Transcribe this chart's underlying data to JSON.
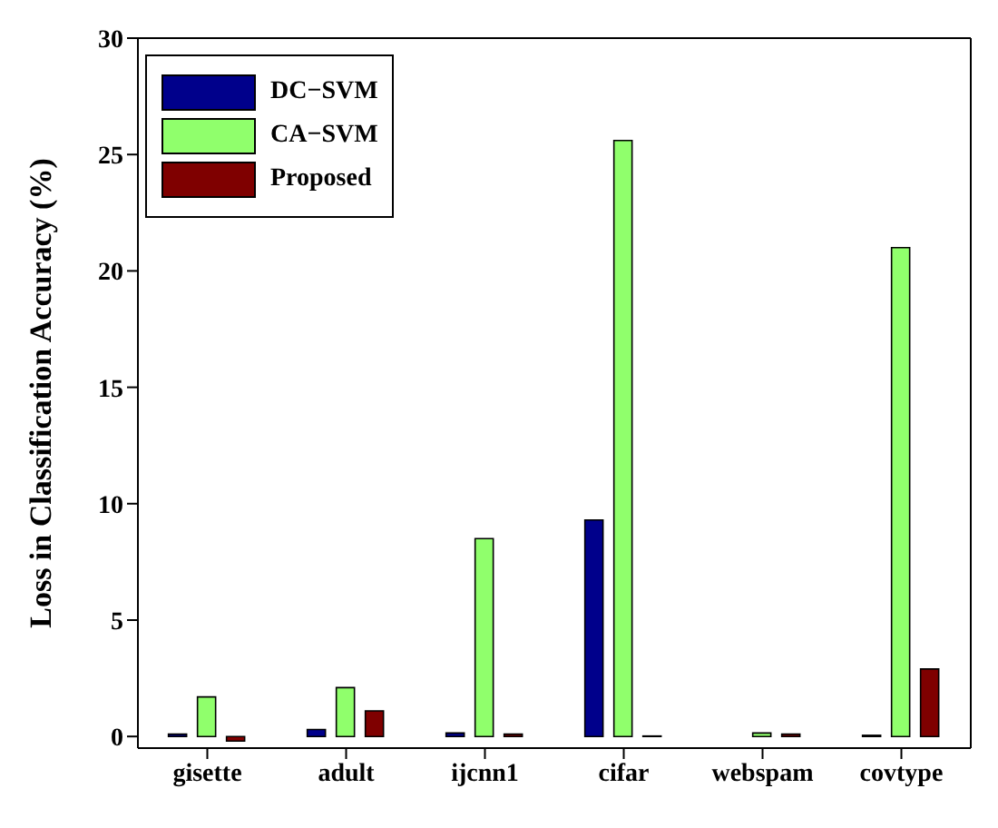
{
  "chart_data": {
    "type": "bar",
    "ylabel": "Loss in Classification Accuracy (%)",
    "categories": [
      "gisette",
      "adult",
      "ijcnn1",
      "cifar",
      "webspam",
      "covtype"
    ],
    "series": [
      {
        "name": "DC−SVM",
        "color": "#00008b",
        "values": [
          0.1,
          0.3,
          0.15,
          9.3,
          0,
          0.05
        ]
      },
      {
        "name": "CA−SVM",
        "color": "#90ff6c",
        "values": [
          1.7,
          2.1,
          8.5,
          25.6,
          0.15,
          21.0
        ]
      },
      {
        "name": "Proposed",
        "color": "#7f0000",
        "values": [
          -0.2,
          1.1,
          0.1,
          0.02,
          0.1,
          2.9
        ]
      }
    ],
    "ylim": [
      -0.5,
      30
    ],
    "yticks": [
      0,
      5,
      10,
      15,
      20,
      25,
      30
    ],
    "legend": "top left",
    "grid": false
  }
}
